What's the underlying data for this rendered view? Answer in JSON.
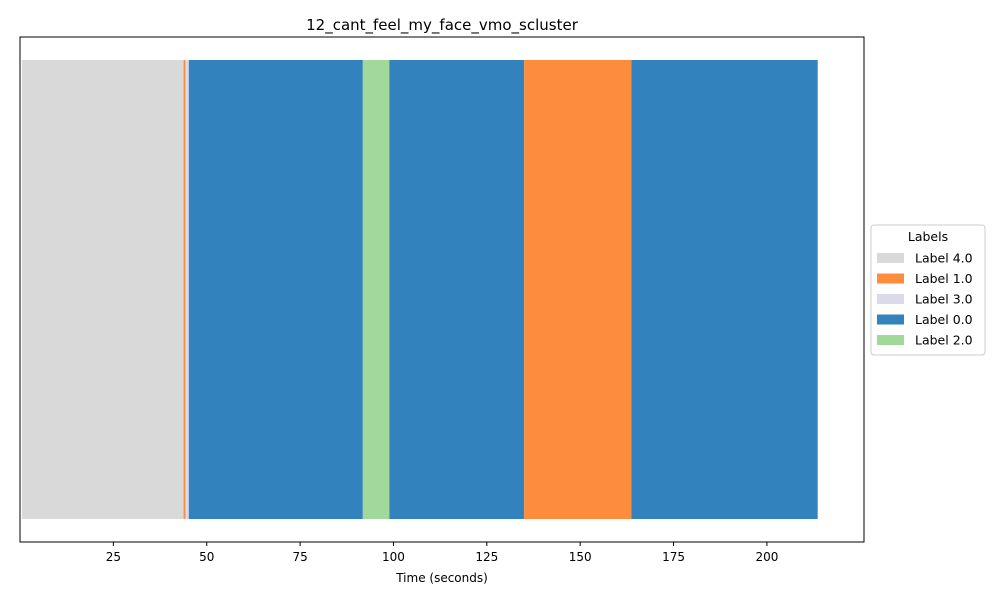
{
  "chart_data": {
    "type": "timeline",
    "title": "12_cant_feel_my_face_vmo_scluster",
    "xlabel": "Time (seconds)",
    "xlim": [
      0,
      226
    ],
    "x_ticks": [
      25,
      50,
      75,
      100,
      125,
      150,
      175,
      200
    ],
    "legend": {
      "title": "Labels",
      "placement": "center-right outside",
      "entries": [
        {
          "label": "Label 4.0",
          "color": "#d9d9d9"
        },
        {
          "label": "Label 1.0",
          "color": "#fd8d3c"
        },
        {
          "label": "Label 3.0",
          "color": "#dadaeb"
        },
        {
          "label": "Label 0.0",
          "color": "#3182bd"
        },
        {
          "label": "Label 2.0",
          "color": "#a1d99b"
        }
      ]
    },
    "segments": [
      {
        "label": "Label 4.0",
        "start": 0.5,
        "end": 43.8
      },
      {
        "label": "Label 1.0",
        "start": 43.8,
        "end": 44.3
      },
      {
        "label": "Label 3.0",
        "start": 44.3,
        "end": 45.2
      },
      {
        "label": "Label 0.0",
        "start": 45.2,
        "end": 91.8
      },
      {
        "label": "Label 2.0",
        "start": 91.8,
        "end": 98.9
      },
      {
        "label": "Label 0.0",
        "start": 98.9,
        "end": 135.0
      },
      {
        "label": "Label 1.0",
        "start": 135.0,
        "end": 163.7
      },
      {
        "label": "Label 0.0",
        "start": 163.7,
        "end": 213.6
      }
    ]
  }
}
